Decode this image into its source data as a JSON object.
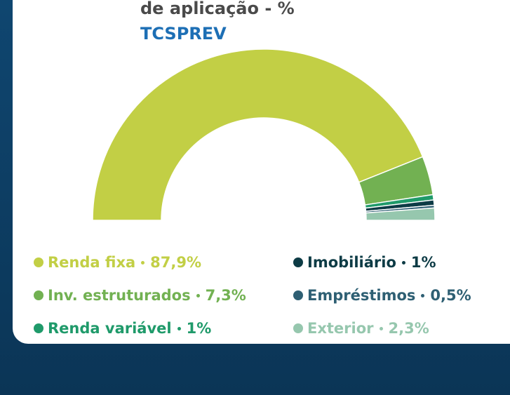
{
  "chart_data": {
    "type": "pie",
    "title": "de aplicação - %",
    "subtitle": "TCSPREV",
    "categories": [
      "Renda fixa",
      "Inv. estruturados",
      "Renda variável",
      "Imobiliário",
      "Empréstimos",
      "Exterior"
    ],
    "values": [
      87.9,
      7.3,
      1,
      1,
      0.5,
      2.3
    ],
    "value_labels": [
      "87,9%",
      "7,3%",
      "1%",
      "1%",
      "0,5%",
      "2,3%"
    ],
    "colors": [
      "#c2cf45",
      "#72b152",
      "#1f9a6a",
      "#0d3b45",
      "#2e5f73",
      "#96c7ae"
    ]
  }
}
